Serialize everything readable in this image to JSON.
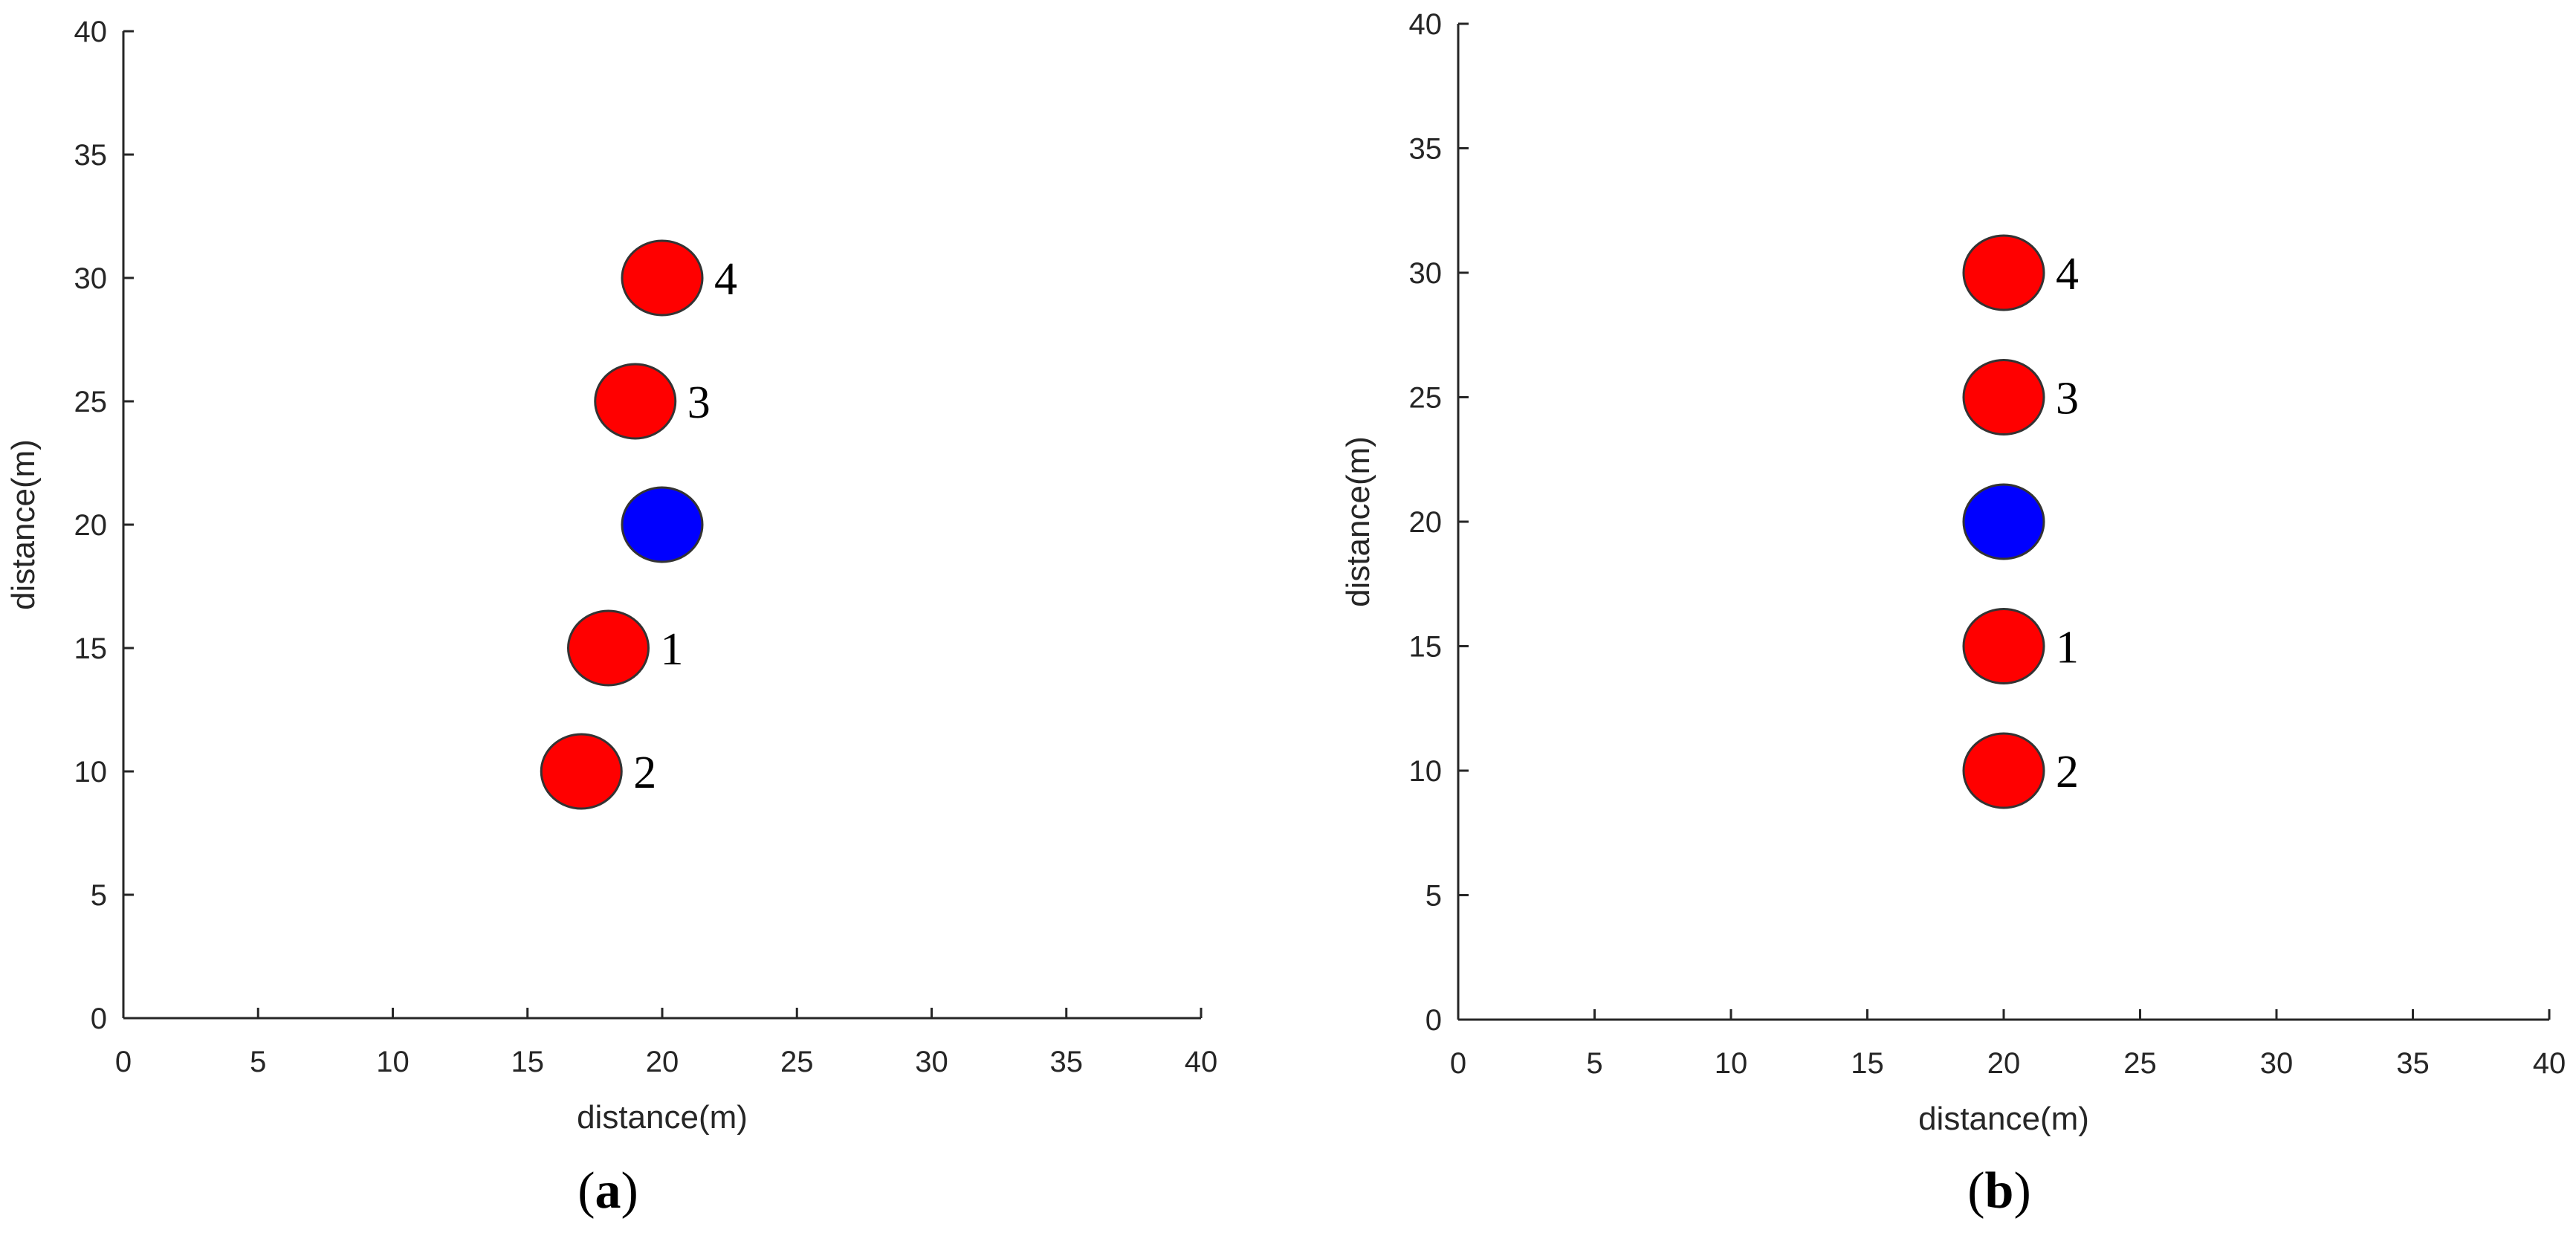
{
  "colors": {
    "robot": "#ff0000",
    "leader": "#0000ff",
    "outline": "#333333",
    "axis": "#262626"
  },
  "chart_data": [
    {
      "type": "scatter",
      "caption": {
        "open": "(",
        "letter": "a",
        "close": ")"
      },
      "xlabel": "distance(m)",
      "ylabel": "distance(m)",
      "xlim": [
        0,
        40
      ],
      "ylim": [
        0,
        40
      ],
      "xticks": [
        0,
        5,
        10,
        15,
        20,
        25,
        30,
        35,
        40
      ],
      "yticks": [
        0,
        5,
        10,
        15,
        20,
        25,
        30,
        35,
        40
      ],
      "points": [
        {
          "x": 20,
          "y": 30,
          "label": "4",
          "role": "robot"
        },
        {
          "x": 19,
          "y": 25,
          "label": "3",
          "role": "robot"
        },
        {
          "x": 20,
          "y": 20,
          "label": "",
          "role": "leader"
        },
        {
          "x": 18,
          "y": 15,
          "label": "1",
          "role": "robot"
        },
        {
          "x": 17,
          "y": 10,
          "label": "2",
          "role": "robot"
        }
      ]
    },
    {
      "type": "scatter",
      "caption": {
        "open": "(",
        "letter": "b",
        "close": ")"
      },
      "xlabel": "distance(m)",
      "ylabel": "distance(m)",
      "xlim": [
        0,
        40
      ],
      "ylim": [
        0,
        40
      ],
      "xticks": [
        0,
        5,
        10,
        15,
        20,
        25,
        30,
        35,
        40
      ],
      "yticks": [
        0,
        5,
        10,
        15,
        20,
        25,
        30,
        35,
        40
      ],
      "points": [
        {
          "x": 20,
          "y": 30,
          "label": "4",
          "role": "robot"
        },
        {
          "x": 20,
          "y": 25,
          "label": "3",
          "role": "robot"
        },
        {
          "x": 20,
          "y": 20,
          "label": "",
          "role": "leader"
        },
        {
          "x": 20,
          "y": 15,
          "label": "1",
          "role": "robot"
        },
        {
          "x": 20,
          "y": 10,
          "label": "2",
          "role": "robot"
        }
      ]
    }
  ]
}
